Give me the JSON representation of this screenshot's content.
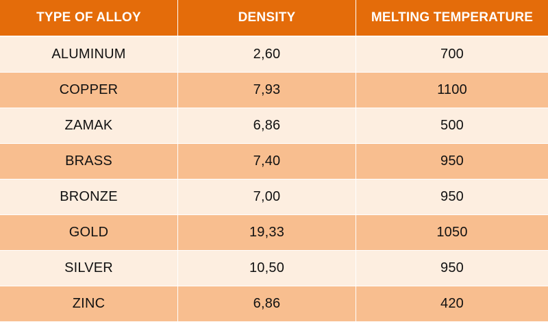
{
  "table": {
    "headers": [
      "TYPE OF ALLOY",
      "DENSITY",
      "MELTING TEMPERATURE"
    ],
    "rows": [
      [
        "ALUMINUM",
        "2,60",
        "700"
      ],
      [
        "COPPER",
        "7,93",
        "1100"
      ],
      [
        "ZAMAK",
        "6,86",
        "500"
      ],
      [
        "BRASS",
        "7,40",
        "950"
      ],
      [
        "BRONZE",
        "7,00",
        "950"
      ],
      [
        "GOLD",
        "19,33",
        "1050"
      ],
      [
        "SILVER",
        "10,50",
        "950"
      ],
      [
        "ZINC",
        "6,86",
        "420"
      ]
    ]
  },
  "colors": {
    "header_bg": "#e46c0a",
    "row_light": "#fdeee0",
    "row_dark": "#f8be8f",
    "header_text": "#ffffff",
    "body_text": "#111111"
  }
}
